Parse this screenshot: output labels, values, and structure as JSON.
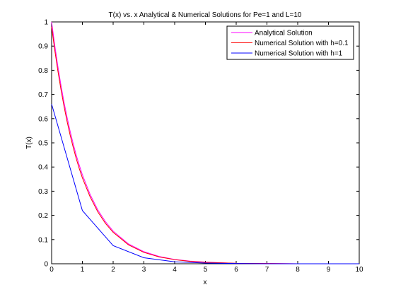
{
  "chart_data": {
    "type": "line",
    "title": "T(x) vs. x Analytical & Numerical Solutions for Pe=1 and L=10",
    "xlabel": "x",
    "ylabel": "T(x)",
    "xlim": [
      0,
      10
    ],
    "ylim": [
      0,
      1
    ],
    "xticks": [
      0,
      1,
      2,
      3,
      4,
      5,
      6,
      7,
      8,
      9,
      10
    ],
    "yticks": [
      0,
      0.1,
      0.2,
      0.3,
      0.4,
      0.5,
      0.6,
      0.7,
      0.8,
      0.9,
      1
    ],
    "grid": false,
    "legend_position": "top-right",
    "series": [
      {
        "name": "Analytical Solution",
        "color": "#ff00ff",
        "x": [
          0,
          0.1,
          0.2,
          0.3,
          0.4,
          0.5,
          0.6,
          0.7,
          0.8,
          0.9,
          1,
          1.25,
          1.5,
          1.75,
          2,
          2.5,
          3,
          3.5,
          4,
          4.5,
          5,
          5.5,
          6,
          7,
          8,
          9,
          10
        ],
        "y": [
          1,
          0.905,
          0.819,
          0.741,
          0.67,
          0.607,
          0.549,
          0.497,
          0.449,
          0.407,
          0.368,
          0.287,
          0.223,
          0.174,
          0.135,
          0.082,
          0.05,
          0.03,
          0.018,
          0.011,
          0.007,
          0.004,
          0.002,
          0.001,
          0,
          0,
          0
        ]
      },
      {
        "name": "Numerical Solution with h=0.1",
        "color": "#ff0000",
        "x": [
          0,
          0.1,
          0.2,
          0.3,
          0.4,
          0.5,
          0.6,
          0.7,
          0.8,
          0.9,
          1,
          1.25,
          1.5,
          1.75,
          2,
          2.5,
          3,
          3.5,
          4,
          4.5,
          5,
          5.5,
          6,
          7,
          8,
          9,
          10
        ],
        "y": [
          0.98,
          0.885,
          0.8,
          0.723,
          0.653,
          0.59,
          0.533,
          0.482,
          0.435,
          0.393,
          0.355,
          0.277,
          0.215,
          0.167,
          0.13,
          0.078,
          0.047,
          0.028,
          0.017,
          0.01,
          0.006,
          0.004,
          0.002,
          0.001,
          0,
          0,
          0
        ]
      },
      {
        "name": "Numerical Solution with h=1",
        "color": "#0000ff",
        "x": [
          0,
          1,
          2,
          3,
          4,
          5,
          6,
          7,
          8,
          9,
          10
        ],
        "y": [
          0.66,
          0.22,
          0.075,
          0.025,
          0.008,
          0.003,
          0.001,
          0,
          0,
          0,
          0
        ]
      }
    ]
  }
}
